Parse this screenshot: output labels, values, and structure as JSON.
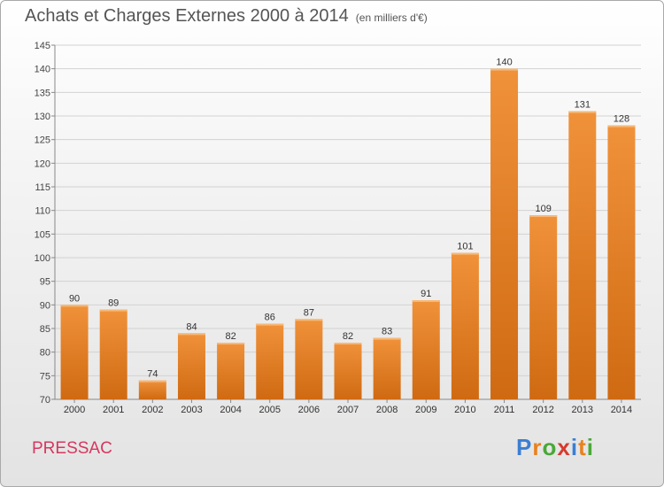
{
  "title": "Achats et Charges Externes 2000 à 2014",
  "subtitle": "(en milliers d'€)",
  "town": "PRESSAC",
  "logo": {
    "text": "Proxiti",
    "colors": [
      "#3b7fd4",
      "#e8821e",
      "#4aa838",
      "#d63a2e",
      "#3b7fd4",
      "#e8821e",
      "#4aa838"
    ]
  },
  "colors": {
    "bar": "#f0923a",
    "bar_dark": "#cf6a12",
    "title": "#555555",
    "town": "#d6375f"
  },
  "chart_data": {
    "type": "bar",
    "categories": [
      "2000",
      "2001",
      "2002",
      "2003",
      "2004",
      "2005",
      "2006",
      "2007",
      "2008",
      "2009",
      "2010",
      "2011",
      "2012",
      "2013",
      "2014"
    ],
    "values": [
      90,
      89,
      74,
      84,
      82,
      86,
      87,
      82,
      83,
      91,
      101,
      140,
      109,
      131,
      128
    ],
    "ylim": [
      70,
      145
    ],
    "yticks": [
      70,
      75,
      80,
      85,
      90,
      95,
      100,
      105,
      110,
      115,
      120,
      125,
      130,
      135,
      140,
      145
    ],
    "grid": true,
    "title": "Achats et Charges Externes 2000 à 2014",
    "xlabel": "",
    "ylabel": ""
  }
}
